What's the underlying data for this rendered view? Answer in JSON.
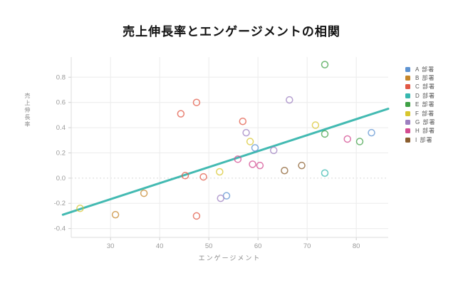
{
  "title": "売上伸長率とエンゲージメントの相関",
  "chart_data": {
    "type": "scatter",
    "title": "売上伸長率とエンゲージメントの相関",
    "xlabel": "エンゲージメント",
    "ylabel": "売上伸長率",
    "x_ticks": [
      30,
      40,
      50,
      60,
      70,
      80
    ],
    "y_ticks": [
      -0.4,
      -0.2,
      0.0,
      0.2,
      0.4,
      0.6,
      0.8
    ],
    "xlim": [
      22,
      86.5
    ],
    "ylim": [
      -0.47,
      0.96
    ],
    "grid": true,
    "zero_line": "dotted",
    "legend_position": "right",
    "marker_style": "open-circle",
    "series": [
      {
        "name": "A 部署",
        "color": "#5e93d1",
        "points": [
          [
            53.6,
            -0.14
          ],
          [
            59.4,
            0.24
          ],
          [
            83.1,
            0.36
          ]
        ]
      },
      {
        "name": "B 部署",
        "color": "#c5862b",
        "points": [
          [
            31.0,
            -0.29
          ],
          [
            36.8,
            -0.12
          ]
        ]
      },
      {
        "name": "C 部署",
        "color": "#e15845",
        "points": [
          [
            44.3,
            0.51
          ],
          [
            47.5,
            0.6
          ],
          [
            56.9,
            0.45
          ],
          [
            45.2,
            0.02
          ],
          [
            48.9,
            0.01
          ],
          [
            47.5,
            -0.3
          ]
        ]
      },
      {
        "name": "D 部署",
        "color": "#36b7ae",
        "points": [
          [
            73.6,
            0.04
          ]
        ]
      },
      {
        "name": "E 部署",
        "color": "#3fa045",
        "points": [
          [
            73.6,
            0.9
          ],
          [
            73.6,
            0.35
          ],
          [
            80.7,
            0.29
          ]
        ]
      },
      {
        "name": "F 部署",
        "color": "#d8c62e",
        "points": [
          [
            23.8,
            -0.24
          ],
          [
            52.2,
            0.05
          ],
          [
            58.4,
            0.29
          ],
          [
            71.7,
            0.42
          ]
        ]
      },
      {
        "name": "G 部署",
        "color": "#9c7fc0",
        "points": [
          [
            52.4,
            -0.16
          ],
          [
            57.6,
            0.36
          ],
          [
            63.2,
            0.22
          ],
          [
            66.4,
            0.62
          ]
        ]
      },
      {
        "name": "H 部署",
        "color": "#d34b90",
        "points": [
          [
            55.9,
            0.15
          ],
          [
            58.9,
            0.11
          ],
          [
            60.4,
            0.1
          ],
          [
            78.2,
            0.31
          ]
        ]
      },
      {
        "name": "I 部署",
        "color": "#8a5d2e",
        "points": [
          [
            65.4,
            0.06
          ],
          [
            68.9,
            0.1
          ]
        ]
      }
    ],
    "trend_line": {
      "color": "#2fb3aa",
      "from": [
        20.3,
        -0.29
      ],
      "to": [
        86.5,
        0.55
      ]
    }
  }
}
